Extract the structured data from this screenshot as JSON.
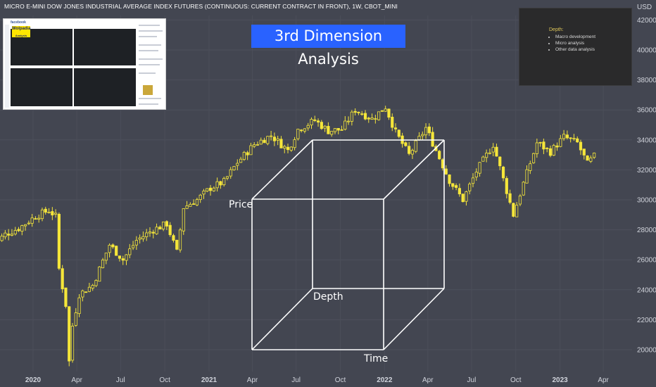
{
  "header": {
    "title": "MICRO E-MINI DOW JONES INDUSTRIAL AVERAGE INDEX FUTURES (CONTINUOUS: CURRENT CONTRACT IN FRONT), 1W, CBOT_MINI",
    "currency": "USD"
  },
  "banner": {
    "text": "3rd Dimension Analysis"
  },
  "notes": {
    "heading": "Depth:",
    "items": [
      "Macro development",
      "Micro analysis",
      "Other data analysis"
    ]
  },
  "thumbnail": {
    "site": "facebook",
    "brand_line1": "Wolpadia",
    "brand_line2": "Analysis"
  },
  "cube_labels": {
    "price": "Price",
    "depth": "Depth",
    "time": "Time"
  },
  "colors": {
    "background": "#434651",
    "candle": "#f5e63a",
    "banner": "#2962ff",
    "cube": "#ffffff",
    "axis_text": "#d1d4dc"
  },
  "chart_data": {
    "type": "candlestick",
    "interval": "1W",
    "y_axis": {
      "position": "right",
      "ticks": [
        20000,
        22000,
        24000,
        26000,
        28000,
        30000,
        32000,
        34000,
        36000,
        38000,
        40000,
        42000
      ],
      "ylim": [
        19000,
        42500
      ]
    },
    "x_axis": {
      "ticks": [
        "2020",
        "Apr",
        "Jul",
        "Oct",
        "2021",
        "Apr",
        "Jul",
        "Oct",
        "2022",
        "Apr",
        "Jul",
        "Oct",
        "2023",
        "Apr"
      ],
      "bold_ticks": [
        "2020",
        "2021",
        "2022",
        "2023"
      ]
    },
    "series": [
      {
        "date": "2019-10-07",
        "close": 26900
      },
      {
        "date": "2019-11-04",
        "close": 27700
      },
      {
        "date": "2019-12-02",
        "close": 28100
      },
      {
        "date": "2020-01-06",
        "close": 28900
      },
      {
        "date": "2020-02-03",
        "close": 29300
      },
      {
        "date": "2020-02-17",
        "close": 28900
      },
      {
        "date": "2020-02-24",
        "close": 25400
      },
      {
        "date": "2020-03-09",
        "close": 23000
      },
      {
        "date": "2020-03-16",
        "close": 19200
      },
      {
        "date": "2020-03-23",
        "close": 21600
      },
      {
        "date": "2020-04-06",
        "close": 23700
      },
      {
        "date": "2020-05-04",
        "close": 24300
      },
      {
        "date": "2020-06-08",
        "close": 27000
      },
      {
        "date": "2020-07-06",
        "close": 26000
      },
      {
        "date": "2020-08-03",
        "close": 27300
      },
      {
        "date": "2020-09-07",
        "close": 28000
      },
      {
        "date": "2020-10-05",
        "close": 28400
      },
      {
        "date": "2020-10-26",
        "close": 26500
      },
      {
        "date": "2020-11-09",
        "close": 29500
      },
      {
        "date": "2020-12-07",
        "close": 30000
      },
      {
        "date": "2021-01-04",
        "close": 30800
      },
      {
        "date": "2021-02-01",
        "close": 31200
      },
      {
        "date": "2021-03-01",
        "close": 32500
      },
      {
        "date": "2021-04-05",
        "close": 33700
      },
      {
        "date": "2021-05-10",
        "close": 34300
      },
      {
        "date": "2021-06-14",
        "close": 33300
      },
      {
        "date": "2021-07-05",
        "close": 34700
      },
      {
        "date": "2021-08-09",
        "close": 35300
      },
      {
        "date": "2021-09-06",
        "close": 34600
      },
      {
        "date": "2021-10-04",
        "close": 34700
      },
      {
        "date": "2021-11-01",
        "close": 36000
      },
      {
        "date": "2021-12-06",
        "close": 35400
      },
      {
        "date": "2022-01-03",
        "close": 36200
      },
      {
        "date": "2022-01-24",
        "close": 34500
      },
      {
        "date": "2022-02-21",
        "close": 33000
      },
      {
        "date": "2022-03-28",
        "close": 34800
      },
      {
        "date": "2022-04-18",
        "close": 33300
      },
      {
        "date": "2022-05-16",
        "close": 31300
      },
      {
        "date": "2022-06-13",
        "close": 30000
      },
      {
        "date": "2022-07-11",
        "close": 31900
      },
      {
        "date": "2022-08-15",
        "close": 33700
      },
      {
        "date": "2022-09-12",
        "close": 30600
      },
      {
        "date": "2022-09-26",
        "close": 29000
      },
      {
        "date": "2022-10-17",
        "close": 31100
      },
      {
        "date": "2022-11-14",
        "close": 33800
      },
      {
        "date": "2022-12-12",
        "close": 33200
      },
      {
        "date": "2023-01-09",
        "close": 34200
      },
      {
        "date": "2023-02-06",
        "close": 33800
      },
      {
        "date": "2023-02-27",
        "close": 32400
      },
      {
        "date": "2023-03-13",
        "close": 32900
      }
    ],
    "annotations": [
      {
        "type": "cube",
        "labels": [
          "Price",
          "Depth",
          "Time"
        ]
      }
    ]
  }
}
